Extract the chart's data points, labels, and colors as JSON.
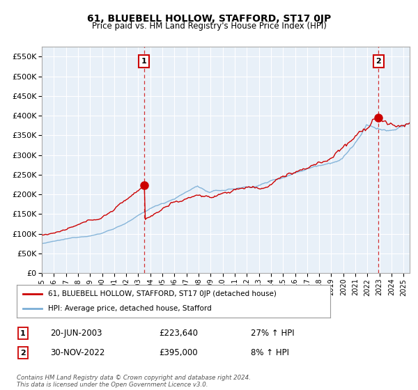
{
  "title": "61, BLUEBELL HOLLOW, STAFFORD, ST17 0JP",
  "subtitle": "Price paid vs. HM Land Registry's House Price Index (HPI)",
  "ylim": [
    0,
    575000
  ],
  "yticks": [
    0,
    50000,
    100000,
    150000,
    200000,
    250000,
    300000,
    350000,
    400000,
    450000,
    500000,
    550000
  ],
  "xlim_start": 1995.0,
  "xlim_end": 2025.5,
  "red_color": "#cc0000",
  "blue_color": "#7aaed6",
  "point1_x": 2003.47,
  "point1_y": 223640,
  "point1_label": "1",
  "point2_x": 2022.92,
  "point2_y": 395000,
  "point2_label": "2",
  "legend_red": "61, BLUEBELL HOLLOW, STAFFORD, ST17 0JP (detached house)",
  "legend_blue": "HPI: Average price, detached house, Stafford",
  "table_rows": [
    {
      "num": "1",
      "date": "20-JUN-2003",
      "price": "£223,640",
      "change": "27% ↑ HPI"
    },
    {
      "num": "2",
      "date": "30-NOV-2022",
      "price": "£395,000",
      "change": "8% ↑ HPI"
    }
  ],
  "footer": "Contains HM Land Registry data © Crown copyright and database right 2024.\nThis data is licensed under the Open Government Licence v3.0.",
  "background_color": "#ffffff",
  "chart_bg": "#e8f0f8",
  "grid_color": "#ffffff"
}
